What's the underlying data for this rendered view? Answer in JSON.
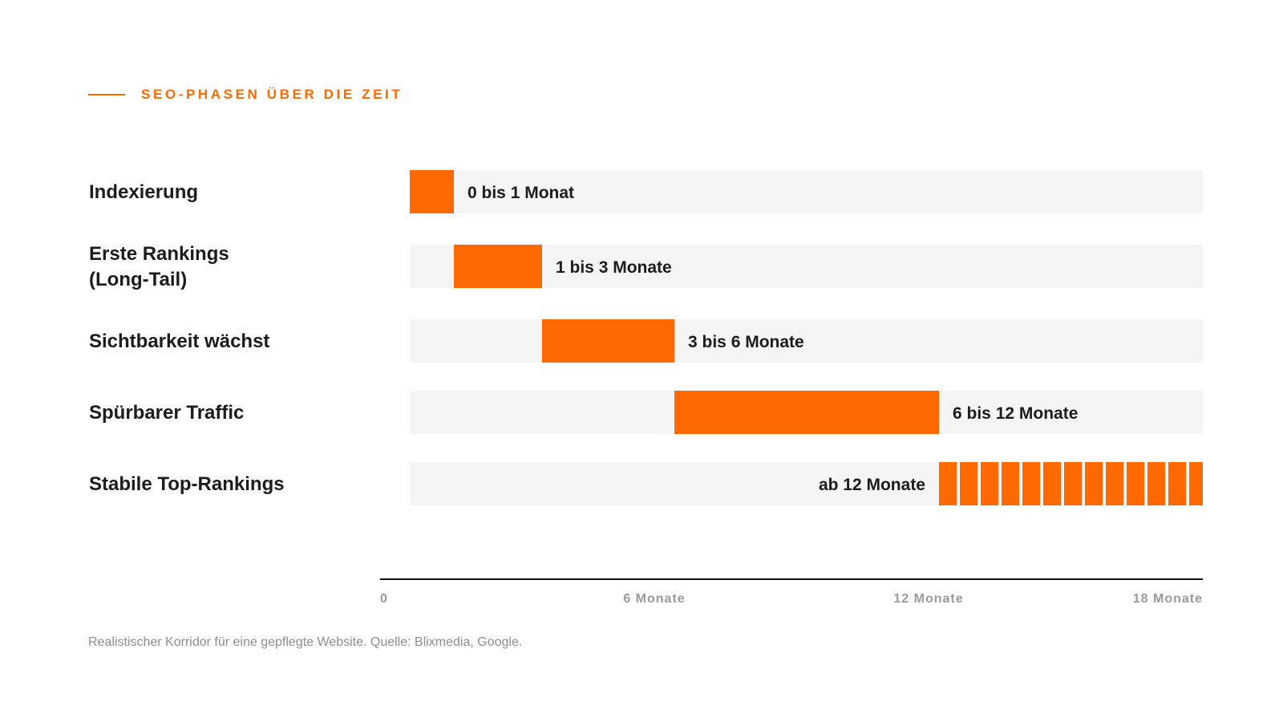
{
  "eyebrow": {
    "text": "SEO-PHASEN ÜBER DIE ZEIT"
  },
  "footnote": "Realistischer Korridor für eine gepflegte Website. Quelle: Blixmedia, Google.",
  "colors": {
    "accent": "#ff6a00",
    "track": "#f5f5f5",
    "text": "#1c1c1c",
    "muted": "#9a9a9a"
  },
  "chart_data": {
    "type": "bar",
    "orientation": "horizontal-range",
    "x_unit": "Monate",
    "xlim": [
      0,
      18
    ],
    "grid": false,
    "ticks": [
      {
        "value": 0,
        "label": "0"
      },
      {
        "value": 6,
        "label": "6 Monate"
      },
      {
        "value": 12,
        "label": "12 Monate"
      },
      {
        "value": 18,
        "label": "18 Monate"
      }
    ],
    "rows": [
      {
        "label": [
          "Indexierung"
        ],
        "start": 0,
        "end": 1,
        "range_label": "0 bis 1 Monat",
        "open_ended": false
      },
      {
        "label": [
          "Erste Rankings",
          "(Long-Tail)"
        ],
        "start": 1,
        "end": 3,
        "range_label": "1 bis 3 Monate",
        "open_ended": false
      },
      {
        "label": [
          "Sichtbarkeit wächst"
        ],
        "start": 3,
        "end": 6,
        "range_label": "3 bis 6 Monate",
        "open_ended": false
      },
      {
        "label": [
          "Spürbarer Traffic"
        ],
        "start": 6,
        "end": 12,
        "range_label": "6 bis 12 Monate",
        "open_ended": false
      },
      {
        "label": [
          "Stabile Top-Rankings"
        ],
        "start": 12,
        "end": 18,
        "range_label": "ab 12 Monate",
        "open_ended": true
      }
    ]
  }
}
